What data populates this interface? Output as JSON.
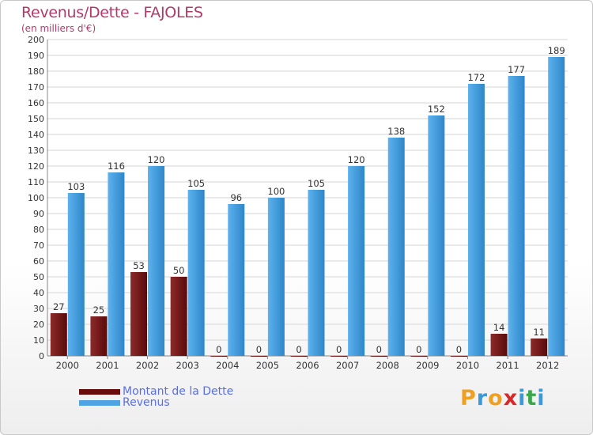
{
  "page": {
    "title": "Revenus/Dette - FAJOLES",
    "subtitle": "(en milliers d'€)"
  },
  "chart_data": {
    "type": "bar",
    "title": "Revenus/Dette - FAJOLES",
    "subtitle": "(en milliers d'€)",
    "xlabel": "",
    "ylabel": "",
    "ylim": [
      0,
      200
    ],
    "yticks": [
      0,
      10,
      20,
      30,
      40,
      50,
      60,
      70,
      80,
      90,
      100,
      110,
      120,
      130,
      140,
      150,
      160,
      170,
      180,
      190,
      200
    ],
    "grid": true,
    "legend_position": "bottom-left",
    "categories": [
      "2000",
      "2001",
      "2002",
      "2003",
      "2004",
      "2005",
      "2006",
      "2007",
      "2008",
      "2009",
      "2010",
      "2011",
      "2012"
    ],
    "series": [
      {
        "name": "Montant de la Dette",
        "color": "#7a1a1a",
        "values": [
          27,
          25,
          53,
          50,
          0,
          0,
          0,
          0,
          0,
          0,
          0,
          14,
          11
        ]
      },
      {
        "name": "Revenus",
        "color": "#4ea3e3",
        "values": [
          103,
          116,
          120,
          105,
          96,
          100,
          105,
          120,
          138,
          152,
          172,
          177,
          189
        ]
      }
    ]
  },
  "legend": {
    "items": [
      {
        "label": "Montant de la Dette",
        "color": "#6b0c0c"
      },
      {
        "label": "Revenus",
        "color": "#4ea3e3"
      }
    ]
  },
  "logo": {
    "letters": [
      "P",
      "r",
      "o",
      "x",
      "i",
      "t",
      "i"
    ],
    "colors": [
      "#f0a020",
      "#3a9ad9",
      "#f0a020",
      "#d42a2a",
      "#3a9ad9",
      "#3aa84a",
      "#3a9ad9"
    ]
  }
}
